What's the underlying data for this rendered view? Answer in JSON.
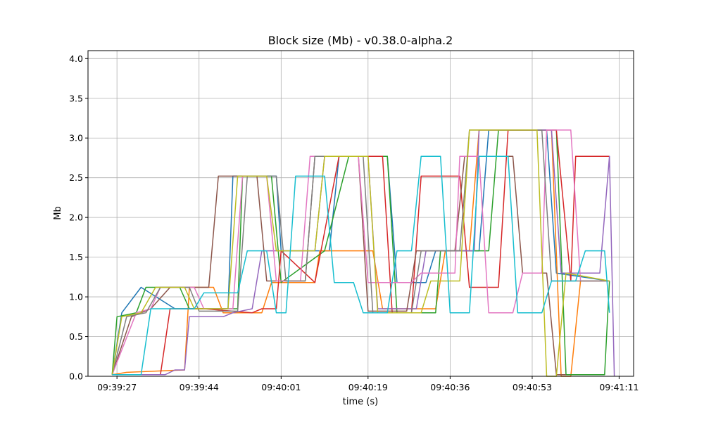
{
  "chart_data": {
    "type": "line",
    "title": "Block size (Mb)  -  v0.38.0-alpha.2",
    "xlabel": "time (s)",
    "ylabel": "Mb",
    "xlim": [
      "09:39:21",
      "09:41:14"
    ],
    "ylim": [
      0.0,
      4.1
    ],
    "x_ticks": [
      "09:39:27",
      "09:39:44",
      "09:40:01",
      "09:40:19",
      "09:40:36",
      "09:40:53",
      "09:41:11"
    ],
    "y_ticks": [
      "0.0",
      "0.5",
      "1.0",
      "1.5",
      "2.0",
      "2.5",
      "3.0",
      "3.5",
      "4.0"
    ],
    "grid": true,
    "legend": "none",
    "series": [
      {
        "color": "#1f77b4",
        "points": [
          [
            "09:39:26",
            0.02
          ],
          [
            "09:39:28",
            0.8
          ],
          [
            "09:39:32",
            1.12
          ],
          [
            "09:39:39",
            0.85
          ],
          [
            "09:39:50",
            0.85
          ],
          [
            "09:39:51",
            2.52
          ],
          [
            "09:40:00",
            2.52
          ],
          [
            "09:40:01",
            1.58
          ],
          [
            "09:40:11",
            1.58
          ],
          [
            "09:40:13",
            2.77
          ],
          [
            "09:40:23",
            2.77
          ],
          [
            "09:40:25",
            1.18
          ],
          [
            "09:40:31",
            1.18
          ],
          [
            "09:40:33",
            1.58
          ],
          [
            "09:40:42",
            1.58
          ],
          [
            "09:40:44",
            3.1
          ],
          [
            "09:40:56",
            3.1
          ],
          [
            "09:40:58",
            1.3
          ],
          [
            "09:41:09",
            1.2
          ]
        ]
      },
      {
        "color": "#ff7f0e",
        "points": [
          [
            "09:39:26",
            0.02
          ],
          [
            "09:39:29",
            0.05
          ],
          [
            "09:39:41",
            0.08
          ],
          [
            "09:39:42",
            1.12
          ],
          [
            "09:39:47",
            1.12
          ],
          [
            "09:39:49",
            0.8
          ],
          [
            "09:39:57",
            0.8
          ],
          [
            "09:39:59",
            1.18
          ],
          [
            "09:40:08",
            1.18
          ],
          [
            "09:40:09",
            1.58
          ],
          [
            "09:40:20",
            1.58
          ],
          [
            "09:40:22",
            0.85
          ],
          [
            "09:40:33",
            0.85
          ],
          [
            "09:40:35",
            1.58
          ],
          [
            "09:40:40",
            1.58
          ],
          [
            "09:40:42",
            3.1
          ],
          [
            "09:40:57",
            3.1
          ],
          [
            "09:40:59",
            0.0
          ],
          [
            "09:41:01",
            0.0
          ],
          [
            "09:41:03",
            1.2
          ],
          [
            "09:41:09",
            1.2
          ]
        ]
      },
      {
        "color": "#2ca02c",
        "points": [
          [
            "09:39:26",
            0.02
          ],
          [
            "09:39:27",
            0.75
          ],
          [
            "09:39:31",
            0.8
          ],
          [
            "09:39:33",
            1.12
          ],
          [
            "09:39:40",
            1.12
          ],
          [
            "09:39:42",
            0.85
          ],
          [
            "09:39:52",
            0.85
          ],
          [
            "09:39:53",
            2.52
          ],
          [
            "09:39:59",
            2.52
          ],
          [
            "09:40:01",
            1.18
          ],
          [
            "09:40:10",
            1.58
          ],
          [
            "09:40:15",
            2.77
          ],
          [
            "09:40:23",
            2.77
          ],
          [
            "09:40:25",
            0.8
          ],
          [
            "09:40:33",
            0.8
          ],
          [
            "09:40:34",
            1.58
          ],
          [
            "09:40:44",
            1.58
          ],
          [
            "09:40:46",
            3.1
          ],
          [
            "09:40:58",
            3.1
          ],
          [
            "09:41:00",
            0.02
          ],
          [
            "09:41:08",
            0.02
          ],
          [
            "09:41:09",
            1.2
          ]
        ]
      },
      {
        "color": "#d62728",
        "points": [
          [
            "09:39:26",
            0.02
          ],
          [
            "09:39:36",
            0.02
          ],
          [
            "09:39:38",
            0.85
          ],
          [
            "09:39:45",
            0.85
          ],
          [
            "09:39:55",
            0.8
          ],
          [
            "09:39:57",
            0.85
          ],
          [
            "09:40:00",
            0.85
          ],
          [
            "09:40:01",
            1.58
          ],
          [
            "09:40:08",
            1.18
          ],
          [
            "09:40:13",
            2.77
          ],
          [
            "09:40:22",
            2.77
          ],
          [
            "09:40:24",
            0.8
          ],
          [
            "09:40:28",
            0.8
          ],
          [
            "09:40:30",
            2.52
          ],
          [
            "09:40:38",
            2.52
          ],
          [
            "09:40:40",
            1.12
          ],
          [
            "09:40:46",
            1.12
          ],
          [
            "09:40:48",
            3.1
          ],
          [
            "09:40:58",
            3.1
          ],
          [
            "09:41:01",
            1.2
          ],
          [
            "09:41:02",
            2.77
          ],
          [
            "09:41:09",
            2.77
          ]
        ]
      },
      {
        "color": "#9467bd",
        "points": [
          [
            "09:39:26",
            0.02
          ],
          [
            "09:39:37",
            0.02
          ],
          [
            "09:39:39",
            0.08
          ],
          [
            "09:39:41",
            0.08
          ],
          [
            "09:39:42",
            0.75
          ],
          [
            "09:39:49",
            0.75
          ],
          [
            "09:39:51",
            0.8
          ],
          [
            "09:39:55",
            0.85
          ],
          [
            "09:39:57",
            1.58
          ],
          [
            "09:40:08",
            1.58
          ],
          [
            "09:40:10",
            2.77
          ],
          [
            "09:40:19",
            2.77
          ],
          [
            "09:40:21",
            0.85
          ],
          [
            "09:40:29",
            0.85
          ],
          [
            "09:40:31",
            1.58
          ],
          [
            "09:40:41",
            1.58
          ],
          [
            "09:40:42",
            3.1
          ],
          [
            "09:40:57",
            3.1
          ],
          [
            "09:40:59",
            1.3
          ],
          [
            "09:41:07",
            1.3
          ],
          [
            "09:41:09",
            2.77
          ],
          [
            "09:41:10",
            0.0
          ]
        ]
      },
      {
        "color": "#8c564b",
        "points": [
          [
            "09:39:26",
            0.02
          ],
          [
            "09:39:30",
            0.75
          ],
          [
            "09:39:34",
            0.85
          ],
          [
            "09:39:38",
            1.12
          ],
          [
            "09:39:46",
            1.12
          ],
          [
            "09:39:48",
            2.52
          ],
          [
            "09:39:56",
            2.52
          ],
          [
            "09:39:58",
            1.2
          ],
          [
            "09:40:06",
            1.2
          ],
          [
            "09:40:08",
            2.77
          ],
          [
            "09:40:17",
            2.77
          ],
          [
            "09:40:19",
            0.82
          ],
          [
            "09:40:27",
            0.82
          ],
          [
            "09:40:29",
            1.58
          ],
          [
            "09:40:37",
            1.58
          ],
          [
            "09:40:39",
            2.77
          ],
          [
            "09:40:49",
            2.77
          ],
          [
            "09:40:51",
            1.3
          ],
          [
            "09:40:56",
            1.3
          ],
          [
            "09:40:58",
            0.02
          ],
          [
            "09:41:00",
            0.02
          ]
        ]
      },
      {
        "color": "#e377c2",
        "points": [
          [
            "09:39:26",
            0.02
          ],
          [
            "09:39:31",
            0.8
          ],
          [
            "09:39:34",
            0.85
          ],
          [
            "09:39:36",
            1.12
          ],
          [
            "09:39:43",
            1.12
          ],
          [
            "09:39:45",
            0.85
          ],
          [
            "09:39:51",
            0.85
          ],
          [
            "09:39:53",
            2.52
          ],
          [
            "09:39:58",
            2.52
          ],
          [
            "09:40:00",
            1.2
          ],
          [
            "09:40:05",
            1.2
          ],
          [
            "09:40:07",
            2.77
          ],
          [
            "09:40:17",
            2.77
          ],
          [
            "09:40:19",
            1.18
          ],
          [
            "09:40:28",
            1.18
          ],
          [
            "09:40:30",
            1.3
          ],
          [
            "09:40:37",
            1.3
          ],
          [
            "09:40:38",
            2.77
          ],
          [
            "09:40:42",
            2.77
          ],
          [
            "09:40:44",
            0.8
          ],
          [
            "09:40:49",
            0.8
          ],
          [
            "09:40:51",
            1.3
          ],
          [
            "09:40:55",
            1.3
          ],
          [
            "09:40:56",
            3.1
          ],
          [
            "09:41:01",
            3.1
          ],
          [
            "09:41:03",
            1.2
          ],
          [
            "09:41:09",
            1.2
          ]
        ]
      },
      {
        "color": "#7f7f7f",
        "points": [
          [
            "09:39:26",
            0.02
          ],
          [
            "09:39:29",
            0.75
          ],
          [
            "09:39:33",
            0.8
          ],
          [
            "09:39:36",
            1.12
          ],
          [
            "09:39:42",
            1.12
          ],
          [
            "09:39:44",
            0.82
          ],
          [
            "09:39:52",
            0.82
          ],
          [
            "09:39:54",
            2.52
          ],
          [
            "09:40:00",
            2.52
          ],
          [
            "09:40:02",
            1.2
          ],
          [
            "09:40:06",
            1.2
          ],
          [
            "09:40:08",
            2.77
          ],
          [
            "09:40:18",
            2.77
          ],
          [
            "09:40:20",
            0.8
          ],
          [
            "09:40:28",
            0.8
          ],
          [
            "09:40:30",
            1.58
          ],
          [
            "09:40:38",
            1.58
          ],
          [
            "09:40:40",
            3.1
          ],
          [
            "09:40:55",
            3.1
          ],
          [
            "09:40:57",
            1.2
          ],
          [
            "09:41:09",
            1.2
          ]
        ]
      },
      {
        "color": "#bcbd22",
        "points": [
          [
            "09:39:26",
            0.02
          ],
          [
            "09:39:28",
            0.75
          ],
          [
            "09:39:32",
            0.8
          ],
          [
            "09:39:35",
            1.12
          ],
          [
            "09:39:41",
            1.12
          ],
          [
            "09:39:43",
            0.85
          ],
          [
            "09:39:50",
            0.85
          ],
          [
            "09:39:52",
            2.52
          ],
          [
            "09:39:58",
            2.52
          ],
          [
            "09:40:00",
            1.58
          ],
          [
            "09:40:08",
            1.58
          ],
          [
            "09:40:10",
            2.77
          ],
          [
            "09:40:19",
            2.77
          ],
          [
            "09:40:21",
            0.8
          ],
          [
            "09:40:30",
            0.8
          ],
          [
            "09:40:32",
            1.2
          ],
          [
            "09:40:38",
            1.2
          ],
          [
            "09:40:40",
            3.1
          ],
          [
            "09:40:54",
            3.1
          ],
          [
            "09:40:56",
            0.0
          ],
          [
            "09:40:58",
            0.0
          ],
          [
            "09:41:00",
            1.3
          ],
          [
            "09:41:09",
            1.2
          ]
        ]
      },
      {
        "color": "#17becf",
        "points": [
          [
            "09:39:26",
            0.02
          ],
          [
            "09:39:32",
            0.02
          ],
          [
            "09:39:34",
            0.85
          ],
          [
            "09:39:43",
            0.85
          ],
          [
            "09:39:45",
            1.05
          ],
          [
            "09:39:52",
            1.05
          ],
          [
            "09:39:54",
            1.58
          ],
          [
            "09:39:58",
            1.58
          ],
          [
            "09:40:00",
            0.8
          ],
          [
            "09:40:02",
            0.8
          ],
          [
            "09:40:04",
            2.52
          ],
          [
            "09:40:10",
            2.52
          ],
          [
            "09:40:12",
            1.18
          ],
          [
            "09:40:16",
            1.18
          ],
          [
            "09:40:18",
            0.8
          ],
          [
            "09:40:23",
            0.8
          ],
          [
            "09:40:25",
            1.58
          ],
          [
            "09:40:28",
            1.58
          ],
          [
            "09:40:30",
            2.77
          ],
          [
            "09:40:34",
            2.77
          ],
          [
            "09:40:36",
            0.8
          ],
          [
            "09:40:40",
            0.8
          ],
          [
            "09:40:42",
            2.77
          ],
          [
            "09:40:48",
            2.77
          ],
          [
            "09:40:50",
            0.8
          ],
          [
            "09:40:55",
            0.8
          ],
          [
            "09:40:57",
            1.2
          ],
          [
            "09:41:02",
            1.2
          ],
          [
            "09:41:04",
            1.58
          ],
          [
            "09:41:08",
            1.58
          ],
          [
            "09:41:09",
            0.8
          ]
        ]
      }
    ]
  }
}
